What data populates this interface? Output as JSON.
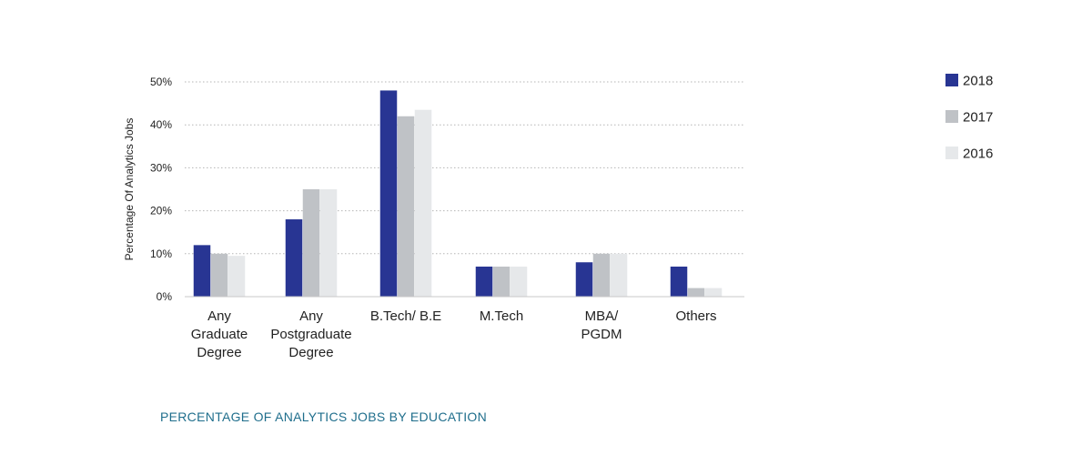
{
  "chart_data": {
    "type": "bar",
    "title": "PERCENTAGE OF ANALYTICS JOBS BY EDUCATION",
    "ylabel": "Percentage Of Analytics Jobs",
    "xlabel": "",
    "ylim": [
      0,
      50
    ],
    "yticks": [
      0,
      10,
      20,
      30,
      40,
      50
    ],
    "ytick_labels": [
      "0%",
      "10%",
      "20%",
      "30%",
      "40%",
      "50%"
    ],
    "grid": "horizontal dotted",
    "legend_position": "top-right",
    "categories": [
      [
        "Any",
        "Graduate",
        "Degree"
      ],
      [
        "Any",
        "Postgraduate",
        "Degree"
      ],
      [
        "B.Tech/ B.E"
      ],
      [
        "M.Tech"
      ],
      [
        "MBA/",
        "PGDM"
      ],
      [
        "Others"
      ]
    ],
    "series": [
      {
        "name": "2018",
        "color": "#283593",
        "values": [
          12,
          18,
          48,
          7,
          8,
          7
        ]
      },
      {
        "name": "2017",
        "color": "#bfc2c6",
        "values": [
          10,
          25,
          42,
          7,
          10,
          2
        ]
      },
      {
        "name": "2016",
        "color": "#e6e8ea",
        "values": [
          9.5,
          25,
          43.5,
          7,
          10,
          2
        ]
      }
    ]
  }
}
